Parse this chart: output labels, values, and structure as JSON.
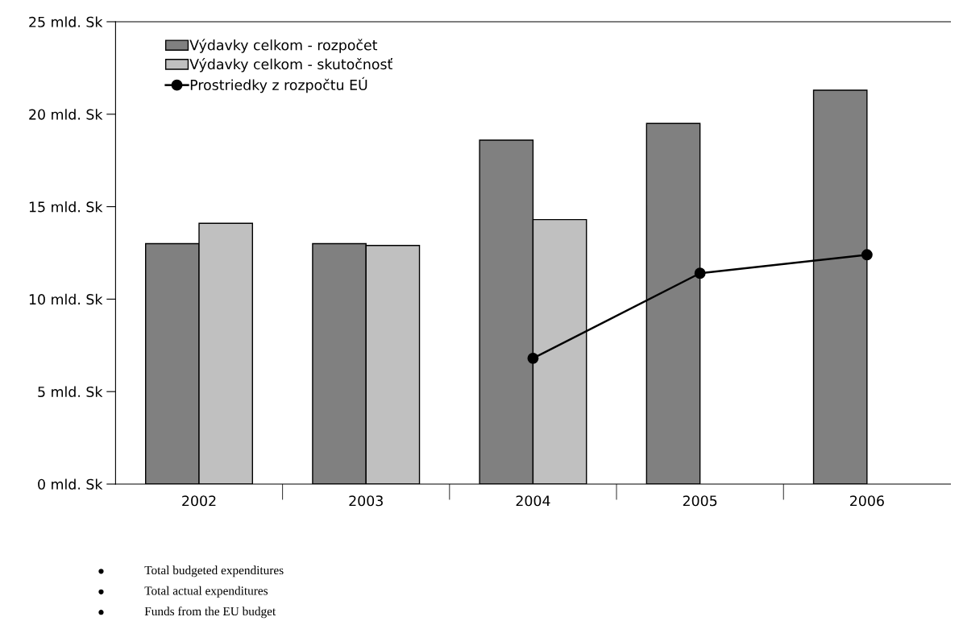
{
  "chart_data": {
    "type": "bar",
    "categories": [
      "2002",
      "2003",
      "2004",
      "2005",
      "2006"
    ],
    "series": [
      {
        "name": "Výdavky celkom - rozpočet",
        "color": "#808080",
        "values": [
          13.0,
          13.0,
          18.6,
          19.5,
          21.3
        ]
      },
      {
        "name": "Výdavky celkom - skutočnosť",
        "color": "#c0c0c0",
        "values": [
          14.1,
          12.9,
          14.3,
          null,
          null
        ]
      },
      {
        "name": "Prostriedky z rozpočtu EÚ",
        "type": "line",
        "color": "#000000",
        "marker": "circle",
        "values": [
          null,
          null,
          6.8,
          11.4,
          12.4
        ]
      }
    ],
    "ylim": [
      0,
      25
    ],
    "yticks": [
      {
        "value": 0,
        "label": "0 mld. Sk"
      },
      {
        "value": 5,
        "label": "5 mld. Sk"
      },
      {
        "value": 10,
        "label": "10 mld. Sk"
      },
      {
        "value": 15,
        "label": "15 mld. Sk"
      },
      {
        "value": 20,
        "label": "20 mld. Sk"
      },
      {
        "value": 25,
        "label": "25 mld. Sk"
      }
    ],
    "grid": false,
    "legend": "top left",
    "annotations": [
      "Total budgeted expenditures",
      "Total actual expenditures",
      "Funds from the EU budget"
    ]
  }
}
